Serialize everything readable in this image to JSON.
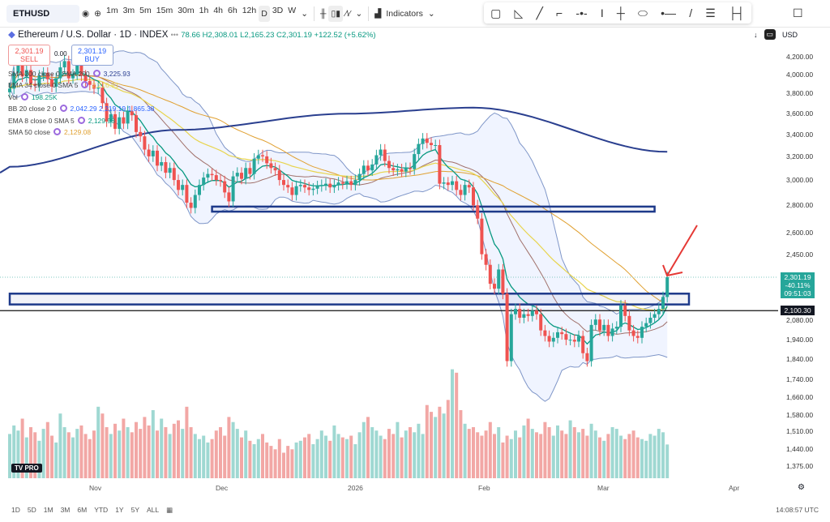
{
  "toolbar": {
    "symbol": "ETHUSD",
    "intervals": [
      "1m",
      "3m",
      "5m",
      "15m",
      "30m",
      "1h",
      "4h",
      "6h",
      "12h",
      "D",
      "3D",
      "W"
    ],
    "active_interval": "D",
    "indicators_label": "Indicators",
    "currency": "USD"
  },
  "header": {
    "title": "Ethereum / U.S. Dollar · 1D · INDEX",
    "ohlc": "78.66 H2,308.01 L2,165.23 C2,301.19 +122.52 (+5.62%)",
    "sell_price": "2,301.19",
    "sell_label": "SELL",
    "spread": "0.00",
    "buy_price": "2,301.19",
    "buy_label": "BUY"
  },
  "indicators": [
    {
      "label": "SMA 200 close 0 SMA 200",
      "value": "3,225.93",
      "color": "#2a3f8f"
    },
    {
      "label": "EMA 34 close 0 SMA 5",
      "value": "2,216.91",
      "color": "#e8d44d"
    },
    {
      "label": "Vol",
      "value": "198.25K",
      "color": "#089981"
    },
    {
      "label": "BB 20 close 2 0",
      "value": "2,042.29  2,219.19  1,865.38",
      "color": "#2962ff"
    },
    {
      "label": "EMA 8 close 0 SMA 5",
      "value": "2,129.98",
      "color": "#089981"
    },
    {
      "label": "SMA 50 close",
      "value": "2,129.08",
      "color": "#e0a030"
    }
  ],
  "chart_data": {
    "type": "candlestick",
    "scale": "log",
    "ylim": [
      1340,
      4300
    ],
    "price_ticks": [
      "4,200.00",
      "4,000.00",
      "3,800.00",
      "3,600.00",
      "3,400.00",
      "3,200.00",
      "3,000.00",
      "2,800.00",
      "2,600.00",
      "2,450.00",
      "2,080.00",
      "1,940.00",
      "1,840.00",
      "1,740.00",
      "1,660.00",
      "1,580.00",
      "1,510.00",
      "1,440.00",
      "1,375.00"
    ],
    "time_ticks": [
      "Nov",
      "Dec",
      "2026",
      "Feb",
      "Mar",
      "Apr"
    ],
    "closes": [
      3850,
      4020,
      4150,
      3980,
      4050,
      3900,
      3880,
      3990,
      4020,
      3950,
      3870,
      3960,
      4080,
      4150,
      3960,
      4000,
      4110,
      3990,
      3930,
      3890,
      3850,
      3860,
      3700,
      3520,
      3590,
      3450,
      3560,
      3500,
      3620,
      3580,
      3420,
      3380,
      3260,
      3200,
      3250,
      3120,
      3150,
      3060,
      3100,
      3000,
      2920,
      2960,
      2820,
      2780,
      2880,
      2960,
      3020,
      3050,
      3040,
      3000,
      2990,
      2900,
      2830,
      3030,
      3060,
      3010,
      3100,
      3050,
      3180,
      3210,
      3200,
      3140,
      3100,
      3080,
      3000,
      2960,
      2940,
      2880,
      2950,
      2960,
      2940,
      2920,
      2930,
      2950,
      2960,
      2970,
      2940,
      2960,
      2980,
      2970,
      2990,
      2960,
      3000,
      3050,
      3120,
      3080,
      3130,
      3210,
      3260,
      3160,
      3100,
      3080,
      3090,
      3070,
      3100,
      3090,
      3220,
      3310,
      3360,
      3320,
      3300,
      3300,
      2970,
      2980,
      2960,
      2990,
      2920,
      2880,
      2960,
      2940,
      2800,
      2700,
      2450,
      2380,
      2260,
      2230,
      2350,
      2200,
      1830,
      2080,
      2110,
      2060,
      2080,
      2070,
      2100,
      2080,
      1990,
      1960,
      1930,
      1950,
      1980,
      1970,
      1940,
      1940,
      1930,
      1960,
      1870,
      1830,
      2020,
      2050,
      1990,
      2020,
      1960,
      2000,
      2010,
      2130,
      2070,
      1990,
      1960,
      1950,
      2010,
      2030,
      2060,
      2080,
      2110,
      2180,
      2301.19
    ],
    "volumes_k": [
      260,
      310,
      280,
      350,
      240,
      300,
      270,
      220,
      290,
      330,
      250,
      210,
      380,
      300,
      270,
      240,
      290,
      310,
      260,
      230,
      280,
      420,
      380,
      300,
      260,
      320,
      280,
      350,
      300,
      270,
      330,
      290,
      360,
      310,
      400,
      280,
      350,
      300,
      260,
      320,
      340,
      290,
      420,
      300,
      260,
      230,
      250,
      210,
      230,
      280,
      300,
      250,
      360,
      330,
      290,
      240,
      280,
      220,
      200,
      230,
      260,
      210,
      190,
      170,
      230,
      150,
      190,
      170,
      210,
      220,
      240,
      260,
      200,
      230,
      280,
      250,
      220,
      310,
      260,
      240,
      230,
      250,
      200,
      270,
      330,
      360,
      300,
      280,
      250,
      230,
      290,
      260,
      330,
      240,
      280,
      300,
      270,
      320,
      260,
      430,
      390,
      360,
      420,
      380,
      460,
      640,
      620,
      400,
      320,
      290,
      300,
      270,
      250,
      280,
      330,
      260,
      300,
      210,
      250,
      230,
      280,
      240,
      310,
      350,
      290,
      270,
      260,
      330,
      300,
      250,
      310,
      280,
      260,
      340,
      300,
      270,
      290,
      250,
      320,
      280,
      240,
      220,
      260,
      300,
      290,
      250,
      230,
      260,
      280,
      240,
      230,
      220,
      260,
      250,
      290,
      270,
      198.25
    ],
    "sma200_points": [
      [
        0,
        3110
      ],
      [
        40,
        3440
      ],
      [
        80,
        3595
      ],
      [
        110,
        3655
      ],
      [
        156,
        3240
      ]
    ],
    "zones": [
      {
        "low": 2752,
        "high": 2790,
        "from_day": 48,
        "to_day": 153
      },
      {
        "low": 2136,
        "high": 2200,
        "from_day": 0,
        "to_day": 160
      }
    ],
    "hline": {
      "value": 2100.3,
      "label": "2,100.30"
    },
    "last_price": {
      "value": 2301.19,
      "label": "2,301.19",
      "change": "-40.11%",
      "countdown": "09:51:03"
    },
    "colors": {
      "up": "#26a69a",
      "down": "#ef5350",
      "vol_up": "#9fd8d2",
      "vol_down": "#f2a7a5",
      "sma200": "#2a3f8f",
      "bb": "#2962ff",
      "ema8": "#089981",
      "sma50": "#e0a030",
      "ema34": "#e8d44d",
      "zone": "#1e3a8a",
      "arrow": "#e53935"
    }
  },
  "bottom": {
    "ranges": [
      "1D",
      "5D",
      "1M",
      "3M",
      "6M",
      "YTD",
      "1Y",
      "5Y",
      "ALL"
    ],
    "clock": "14:08:57 UTC"
  },
  "logo": "TV PRO"
}
